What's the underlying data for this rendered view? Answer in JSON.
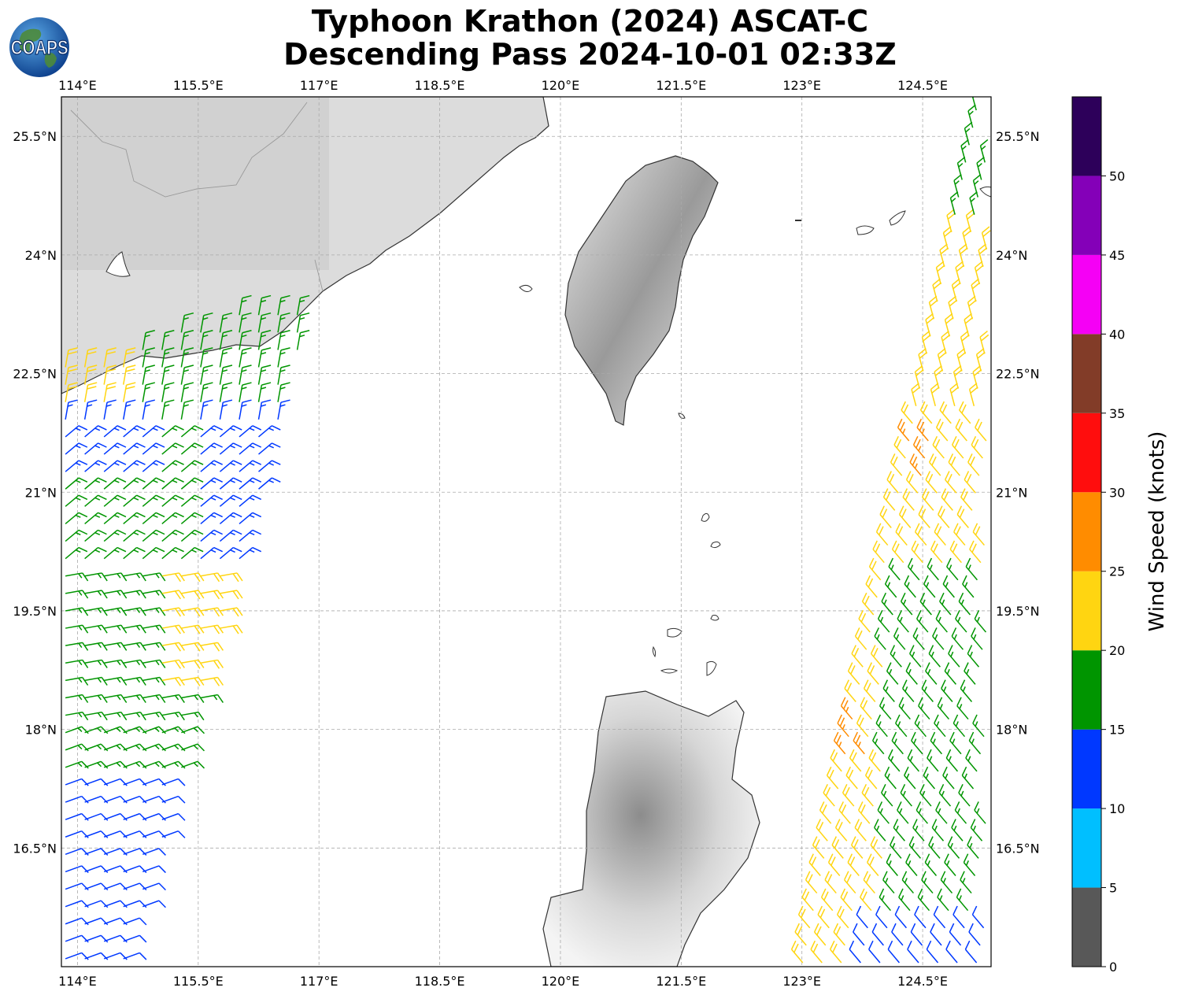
{
  "title": {
    "line1": "Typhoon Krathon (2024) ASCAT-C",
    "line2": "Descending Pass 2024-10-01 02:33Z"
  },
  "logo": {
    "text": "COAPS",
    "icon": "globe-icon"
  },
  "map": {
    "lon_range": [
      113.8,
      125.35
    ],
    "lat_range": [
      15.0,
      26.0
    ],
    "lon_ticks": [
      "114°E",
      "115.5°E",
      "117°E",
      "118.5°E",
      "120°E",
      "121.5°E",
      "123°E",
      "124.5°E"
    ],
    "lat_ticks": [
      "25.5°N",
      "24°N",
      "22.5°N",
      "21°N",
      "19.5°N",
      "18°N",
      "16.5°N"
    ],
    "grid": true,
    "land_shading": "grayscale-terrain",
    "coastline_color": "#333333",
    "swaths": [
      {
        "side": "west",
        "lon_range": [
          113.8,
          117.0
        ],
        "lat_range": [
          15.0,
          23.6
        ]
      },
      {
        "side": "east",
        "lon_range": [
          123.0,
          125.35
        ],
        "lat_range": [
          15.0,
          25.9
        ]
      }
    ]
  },
  "colorbar": {
    "label": "Wind Speed (knots)",
    "ticks": [
      "0",
      "5",
      "10",
      "15",
      "20",
      "25",
      "30",
      "35",
      "40",
      "45",
      "50"
    ],
    "bins": [
      {
        "from": 0,
        "to": 5,
        "color": "#585858"
      },
      {
        "from": 5,
        "to": 10,
        "color": "#00bfff"
      },
      {
        "from": 10,
        "to": 15,
        "color": "#0038ff"
      },
      {
        "from": 15,
        "to": 20,
        "color": "#009500"
      },
      {
        "from": 20,
        "to": 25,
        "color": "#ffd511"
      },
      {
        "from": 25,
        "to": 30,
        "color": "#ff8c00"
      },
      {
        "from": 30,
        "to": 35,
        "color": "#ff0d0d"
      },
      {
        "from": 35,
        "to": 40,
        "color": "#823c28"
      },
      {
        "from": 40,
        "to": 45,
        "color": "#f500f5"
      },
      {
        "from": 45,
        "to": 50,
        "color": "#8400b8"
      },
      {
        "from": 50,
        "to": 55,
        "color": "#2d005a"
      }
    ]
  }
}
